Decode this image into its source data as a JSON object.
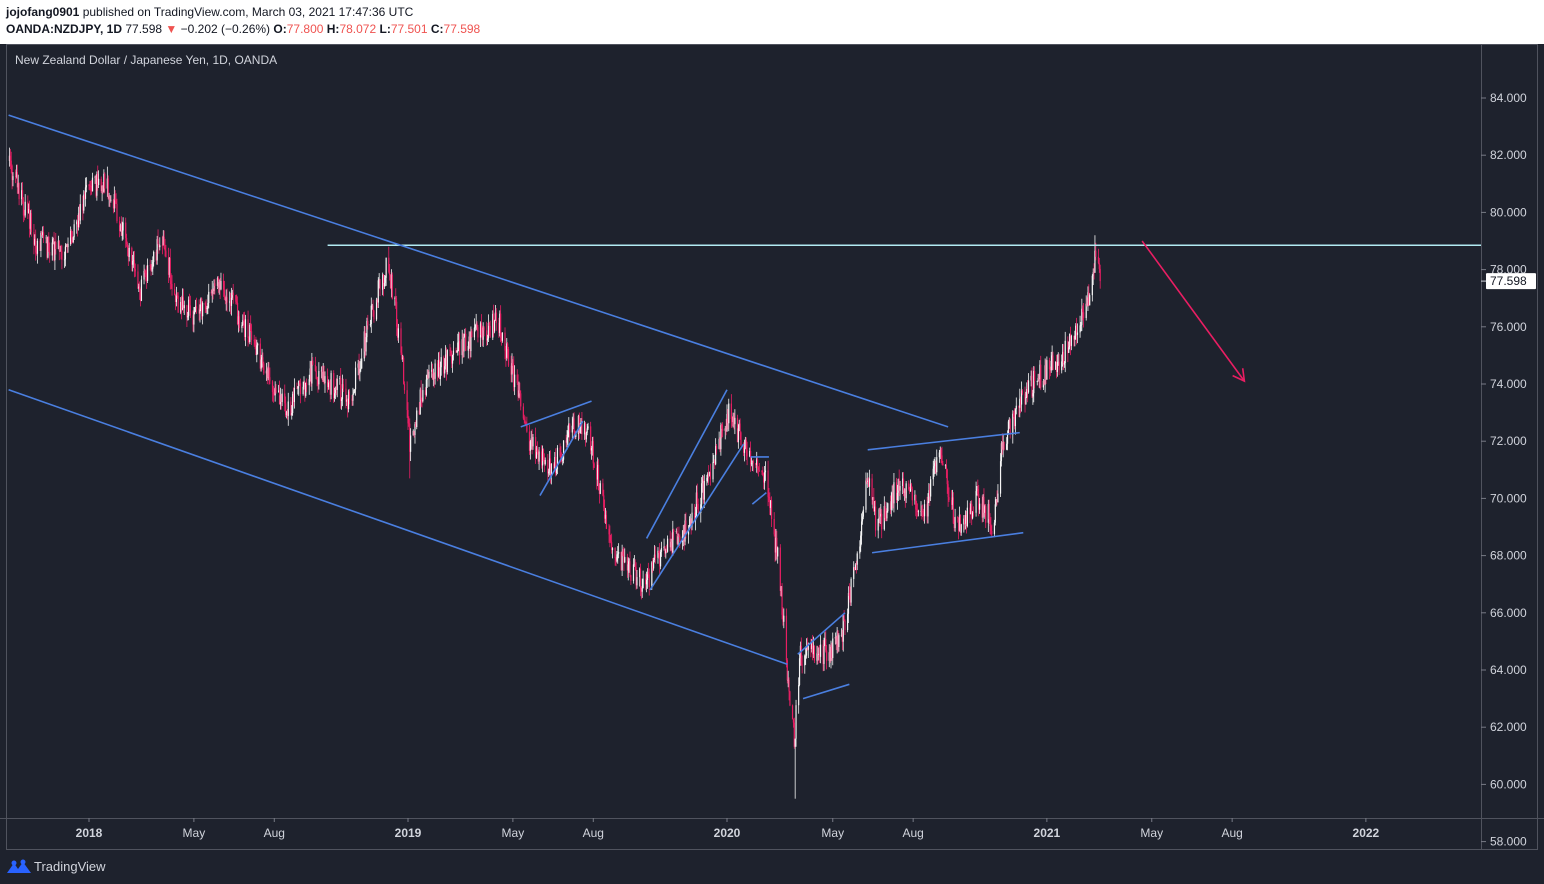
{
  "header": {
    "user": "jojofang0901",
    "publish_text": " published on TradingView.com, March 03, 2021 17:47:36 UTC",
    "symbol": "OANDA:NZDJPY, 1D",
    "last": " 77.598",
    "change_arrow": "▼",
    "change": " −0.202 (−0.26%)",
    "o_label": "O:",
    "o": "77.800",
    "h_label": "H:",
    "h": "78.072",
    "l_label": "L:",
    "l": "77.501",
    "c_label": "C:",
    "c": "77.598"
  },
  "chart_data": {
    "type": "candlestick",
    "title": "New Zealand Dollar / Japanese Yen, 1D, OANDA",
    "ylim": [
      57.0,
      85.0
    ],
    "y_ticks": [
      84,
      82,
      80,
      78,
      76,
      74,
      72,
      70,
      68,
      66,
      64,
      62,
      60,
      58
    ],
    "x_ticks": [
      {
        "label": "2018",
        "date": "2018-01-01"
      },
      {
        "label": "May",
        "date": "2018-05-01"
      },
      {
        "label": "Aug",
        "date": "2018-08-01"
      },
      {
        "label": "2019",
        "date": "2019-01-01"
      },
      {
        "label": "May",
        "date": "2019-05-01"
      },
      {
        "label": "Aug",
        "date": "2019-08-01"
      },
      {
        "label": "2020",
        "date": "2020-01-01"
      },
      {
        "label": "May",
        "date": "2020-05-01"
      },
      {
        "label": "Aug",
        "date": "2020-08-01"
      },
      {
        "label": "2021",
        "date": "2021-01-01"
      },
      {
        "label": "May",
        "date": "2021-05-01"
      },
      {
        "label": "Aug",
        "date": "2021-08-01"
      },
      {
        "label": "2022",
        "date": "2022-01-01"
      }
    ],
    "last_price": 77.598,
    "last_price_label": "77.598",
    "price_path": [
      [
        "2017-10-01",
        81.8
      ],
      [
        "2017-11-01",
        79.0
      ],
      [
        "2017-12-01",
        78.5
      ],
      [
        "2018-01-01",
        80.8
      ],
      [
        "2018-01-20",
        81.2
      ],
      [
        "2018-03-01",
        77.2
      ],
      [
        "2018-03-25",
        79.2
      ],
      [
        "2018-04-10",
        77.0
      ],
      [
        "2018-05-01",
        76.5
      ],
      [
        "2018-06-01",
        77.5
      ],
      [
        "2018-07-15",
        75.0
      ],
      [
        "2018-08-15",
        73.0
      ],
      [
        "2018-09-15",
        74.5
      ],
      [
        "2018-10-26",
        73.5
      ],
      [
        "2018-11-30",
        77.5
      ],
      [
        "2018-12-10",
        78.2
      ],
      [
        "2018-12-25",
        75.0
      ],
      [
        "2019-01-03",
        72.0
      ],
      [
        "2019-01-20",
        74.0
      ],
      [
        "2019-03-10",
        75.5
      ],
      [
        "2019-04-15",
        76.2
      ],
      [
        "2019-05-20",
        72.0
      ],
      [
        "2019-06-15",
        71.0
      ],
      [
        "2019-07-10",
        72.6
      ],
      [
        "2019-07-30",
        72.0
      ],
      [
        "2019-08-20",
        68.5
      ],
      [
        "2019-09-10",
        67.5
      ],
      [
        "2019-09-30",
        67.0
      ],
      [
        "2019-10-15",
        68.0
      ],
      [
        "2019-11-15",
        69.0
      ],
      [
        "2019-12-15",
        71.0
      ],
      [
        "2020-01-02",
        73.0
      ],
      [
        "2020-01-20",
        72.0
      ],
      [
        "2020-02-15",
        70.5
      ],
      [
        "2020-03-01",
        67.5
      ],
      [
        "2020-03-10",
        64.0
      ],
      [
        "2020-03-18",
        61.5
      ],
      [
        "2020-03-25",
        64.5
      ],
      [
        "2020-04-15",
        64.5
      ],
      [
        "2020-05-10",
        65.0
      ],
      [
        "2020-06-01",
        68.5
      ],
      [
        "2020-06-08",
        71.0
      ],
      [
        "2020-06-20",
        69.0
      ],
      [
        "2020-07-15",
        70.5
      ],
      [
        "2020-08-15",
        69.5
      ],
      [
        "2020-09-01",
        71.6
      ],
      [
        "2020-09-20",
        69.0
      ],
      [
        "2020-10-15",
        70.0
      ],
      [
        "2020-11-01",
        69.0
      ],
      [
        "2020-11-10",
        71.5
      ],
      [
        "2020-12-01",
        73.5
      ],
      [
        "2021-01-01",
        74.5
      ],
      [
        "2021-01-20",
        75.0
      ],
      [
        "2021-02-20",
        77.0
      ],
      [
        "2021-02-25",
        78.6
      ],
      [
        "2021-03-03",
        77.598
      ]
    ],
    "extremes": {
      "high_2018": {
        "date": "2018-01-22",
        "value": 81.6
      },
      "high_dec_2018": {
        "date": "2018-12-10",
        "value": 78.8
      },
      "low_jan_2019": {
        "date": "2019-01-03",
        "value": 70.7
      },
      "low_mar_2020": {
        "date": "2020-03-19",
        "value": 59.5
      },
      "high_feb_2021": {
        "date": "2021-02-25",
        "value": 79.2
      }
    },
    "annotations": [
      {
        "type": "hline",
        "from": "2018-10-01",
        "to": "2022-12-31",
        "y": 78.85,
        "color": "#b2ebf2"
      },
      {
        "type": "trendline",
        "p1": [
          "2017-10-01",
          83.4
        ],
        "p2": [
          "2020-09-10",
          72.5
        ],
        "color": "#4a7fe0"
      },
      {
        "type": "trendline",
        "p1": [
          "2017-10-01",
          73.8
        ],
        "p2": [
          "2020-03-10",
          64.2
        ],
        "color": "#4a7fe0"
      },
      {
        "type": "trendline",
        "p1": [
          "2019-05-10",
          72.5
        ],
        "p2": [
          "2019-07-30",
          73.4
        ],
        "color": "#4a7fe0"
      },
      {
        "type": "trendline",
        "p1": [
          "2019-06-01",
          70.1
        ],
        "p2": [
          "2019-07-20",
          72.7
        ],
        "color": "#4a7fe0"
      },
      {
        "type": "trendline",
        "p1": [
          "2019-10-01",
          68.6
        ],
        "p2": [
          "2020-01-01",
          73.8
        ],
        "color": "#4a7fe0"
      },
      {
        "type": "trendline",
        "p1": [
          "2019-10-05",
          66.8
        ],
        "p2": [
          "2020-01-20",
          71.9
        ],
        "color": "#4a7fe0"
      },
      {
        "type": "trendline",
        "p1": [
          "2020-01-28",
          71.45
        ],
        "p2": [
          "2020-02-18",
          71.45
        ],
        "color": "#4a7fe0"
      },
      {
        "type": "trendline",
        "p1": [
          "2020-01-30",
          69.8
        ],
        "p2": [
          "2020-02-15",
          70.2
        ],
        "color": "#4a7fe0"
      },
      {
        "type": "trendline",
        "p1": [
          "2020-03-22",
          64.55
        ],
        "p2": [
          "2020-05-15",
          66.0
        ],
        "color": "#4a7fe0"
      },
      {
        "type": "trendline",
        "p1": [
          "2020-03-28",
          63.0
        ],
        "p2": [
          "2020-05-20",
          63.5
        ],
        "color": "#4a7fe0"
      },
      {
        "type": "trendline",
        "p1": [
          "2020-06-10",
          71.7
        ],
        "p2": [
          "2020-12-01",
          72.3
        ],
        "color": "#4a7fe0"
      },
      {
        "type": "trendline",
        "p1": [
          "2020-06-15",
          68.1
        ],
        "p2": [
          "2020-12-05",
          68.8
        ],
        "color": "#4a7fe0"
      },
      {
        "type": "arrow",
        "p1": [
          "2021-04-20",
          79.0
        ],
        "p2": [
          "2021-08-15",
          74.1
        ],
        "color": "#e91e63"
      }
    ],
    "colors": {
      "background": "#1e222d",
      "up": "#f5f5f5",
      "down": "#e91e63",
      "axis_text": "#d1d4dc"
    }
  },
  "footer": {
    "brand": "TradingView"
  }
}
